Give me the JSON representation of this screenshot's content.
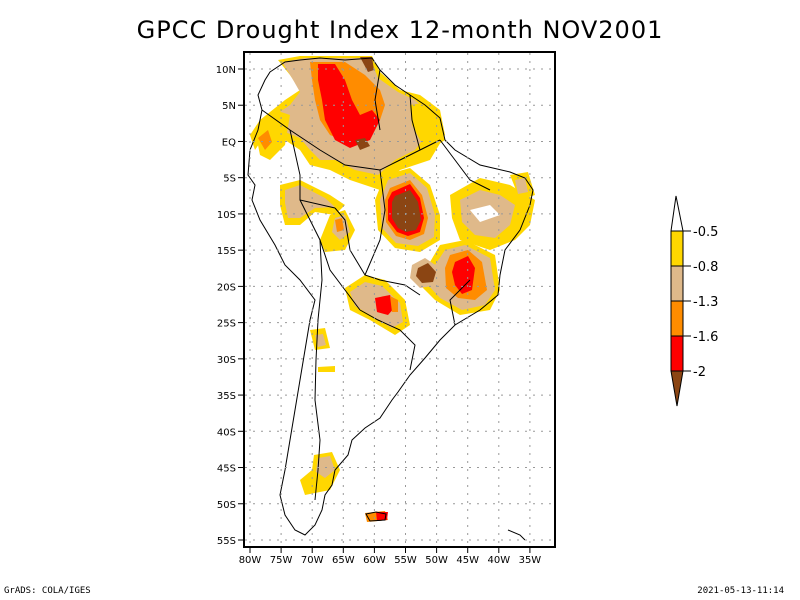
{
  "title": "GPCC Drought Index 12-month NOV2001",
  "footer": {
    "left": "GrADS: COLA/IGES",
    "right": "2021-05-13-11:14"
  },
  "map": {
    "region": "South America",
    "lon_range": [
      "80W",
      "35W"
    ],
    "lat_range": [
      "55S",
      "10N"
    ],
    "lon_ticks": [
      "80W",
      "75W",
      "70W",
      "65W",
      "60W",
      "55W",
      "50W",
      "45W",
      "40W",
      "35W"
    ],
    "lat_ticks": [
      "10N",
      "5N",
      "EQ",
      "5S",
      "10S",
      "15S",
      "20S",
      "25S",
      "30S",
      "35S",
      "40S",
      "45S",
      "50S",
      "55S"
    ],
    "grid": "dotted"
  },
  "colorbar": {
    "labels": [
      "-0.5",
      "-0.8",
      "-1.3",
      "-1.6",
      "-2"
    ],
    "colors": {
      "above": "#ffffff",
      "c1": "#ffd700",
      "c2": "#dfb98a",
      "c3": "#ff8c00",
      "c4": "#ff0000",
      "below": "#8b4513"
    }
  }
}
